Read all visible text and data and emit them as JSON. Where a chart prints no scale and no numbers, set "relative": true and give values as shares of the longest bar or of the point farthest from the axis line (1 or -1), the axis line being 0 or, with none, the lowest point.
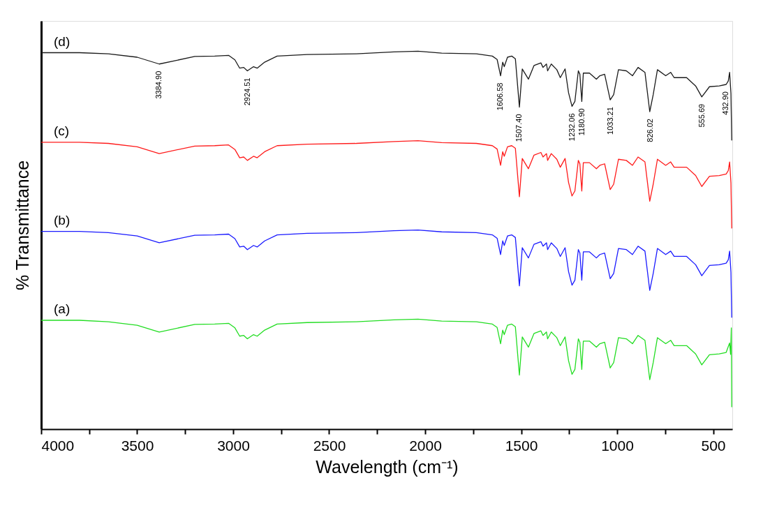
{
  "chart_data": {
    "type": "line",
    "relative": true,
    "xlabel": "Wavelength (cm⁻¹)",
    "ylabel": "% Transmittance",
    "xlim": [
      4000,
      400
    ],
    "xticks": [
      4000,
      {
        "value": 3750,
        "label": null
      },
      3500,
      {
        "value": 3250,
        "label": null
      },
      3000,
      {
        "value": 2750,
        "label": null
      },
      2500,
      {
        "value": 2250,
        "label": null
      },
      2000,
      {
        "value": 1750,
        "label": null
      },
      1500,
      {
        "value": 1250,
        "label": null
      },
      1000,
      {
        "value": 750,
        "label": null
      },
      500
    ],
    "grid": false,
    "legend": false,
    "marker": "none",
    "line_style": "solid",
    "x": [
      4000,
      3800,
      3650,
      3500,
      3385,
      3200,
      3096,
      3024,
      2991,
      2966,
      2945,
      2926,
      2894,
      2875,
      2836,
      2771,
      2615,
      2359,
      2163,
      2037,
      1914,
      1733,
      1650,
      1625,
      1607,
      1596,
      1588,
      1571,
      1549,
      1530,
      1509,
      1494,
      1462,
      1433,
      1397,
      1386,
      1368,
      1362,
      1343,
      1314,
      1296,
      1271,
      1253,
      1235,
      1220,
      1202,
      1194,
      1184,
      1176,
      1144,
      1108,
      1090,
      1065,
      1036,
      1018,
      993,
      952,
      920,
      891,
      855,
      830,
      812,
      790,
      747,
      721,
      703,
      638,
      591,
      559,
      519,
      468,
      432,
      421,
      414,
      407,
      403
    ],
    "series": [
      {
        "name": "(d)",
        "color": "#1a1a1a",
        "values": [
          0.996,
          0.996,
          0.993,
          0.984,
          0.966,
          0.986,
          0.987,
          0.989,
          0.977,
          0.955,
          0.957,
          0.948,
          0.959,
          0.955,
          0.971,
          0.987,
          0.991,
          0.993,
          0.998,
          1.0,
          0.995,
          0.993,
          0.987,
          0.978,
          0.935,
          0.971,
          0.959,
          0.984,
          0.987,
          0.98,
          0.852,
          0.953,
          0.926,
          0.962,
          0.969,
          0.957,
          0.966,
          0.948,
          0.966,
          0.951,
          0.93,
          0.953,
          0.89,
          0.854,
          0.867,
          0.948,
          0.939,
          0.867,
          0.942,
          0.942,
          0.926,
          0.935,
          0.939,
          0.871,
          0.885,
          0.951,
          0.948,
          0.935,
          0.957,
          0.944,
          0.84,
          0.885,
          0.951,
          0.935,
          0.944,
          0.93,
          0.93,
          0.908,
          0.879,
          0.906,
          0.908,
          0.912,
          0.921,
          0.944,
          0.888,
          0.764
        ]
      },
      {
        "name": "(c)",
        "color": "#ff1a1a",
        "values": [
          0.759,
          0.759,
          0.756,
          0.747,
          0.729,
          0.749,
          0.75,
          0.752,
          0.74,
          0.718,
          0.72,
          0.711,
          0.722,
          0.718,
          0.734,
          0.75,
          0.754,
          0.756,
          0.761,
          0.763,
          0.758,
          0.756,
          0.75,
          0.741,
          0.698,
          0.734,
          0.722,
          0.747,
          0.75,
          0.743,
          0.615,
          0.716,
          0.689,
          0.725,
          0.732,
          0.72,
          0.729,
          0.711,
          0.729,
          0.714,
          0.693,
          0.716,
          0.653,
          0.617,
          0.63,
          0.711,
          0.702,
          0.63,
          0.705,
          0.705,
          0.689,
          0.698,
          0.702,
          0.634,
          0.648,
          0.714,
          0.711,
          0.698,
          0.72,
          0.707,
          0.603,
          0.648,
          0.714,
          0.698,
          0.707,
          0.693,
          0.693,
          0.671,
          0.642,
          0.669,
          0.671,
          0.675,
          0.684,
          0.707,
          0.651,
          0.531
        ]
      },
      {
        "name": "(b)",
        "color": "#1a1aff",
        "values": [
          0.523,
          0.523,
          0.52,
          0.511,
          0.493,
          0.513,
          0.514,
          0.516,
          0.504,
          0.482,
          0.484,
          0.475,
          0.486,
          0.482,
          0.498,
          0.514,
          0.518,
          0.52,
          0.525,
          0.527,
          0.522,
          0.52,
          0.514,
          0.505,
          0.462,
          0.498,
          0.486,
          0.511,
          0.514,
          0.507,
          0.379,
          0.48,
          0.453,
          0.489,
          0.496,
          0.484,
          0.493,
          0.475,
          0.493,
          0.478,
          0.457,
          0.48,
          0.417,
          0.381,
          0.394,
          0.475,
          0.466,
          0.394,
          0.469,
          0.469,
          0.453,
          0.462,
          0.466,
          0.398,
          0.412,
          0.478,
          0.475,
          0.462,
          0.484,
          0.471,
          0.367,
          0.412,
          0.478,
          0.462,
          0.471,
          0.457,
          0.457,
          0.435,
          0.406,
          0.433,
          0.435,
          0.439,
          0.448,
          0.471,
          0.415,
          0.295
        ]
      },
      {
        "name": "(a)",
        "color": "#22dd22",
        "x": [
          4000,
          3800,
          3650,
          3500,
          3385,
          3200,
          3096,
          3024,
          2991,
          2966,
          2945,
          2926,
          2894,
          2875,
          2836,
          2771,
          2615,
          2359,
          2163,
          2037,
          1914,
          1733,
          1650,
          1625,
          1607,
          1596,
          1588,
          1571,
          1549,
          1530,
          1509,
          1494,
          1462,
          1433,
          1397,
          1386,
          1368,
          1362,
          1343,
          1314,
          1296,
          1271,
          1253,
          1235,
          1220,
          1202,
          1194,
          1184,
          1176,
          1144,
          1108,
          1090,
          1065,
          1036,
          1018,
          993,
          952,
          920,
          891,
          855,
          830,
          812,
          790,
          747,
          721,
          703,
          638,
          591,
          559,
          519,
          468,
          432,
          414,
          409,
          405,
          403
        ],
        "values": [
          0.288,
          0.288,
          0.284,
          0.275,
          0.257,
          0.277,
          0.278,
          0.28,
          0.268,
          0.246,
          0.248,
          0.239,
          0.25,
          0.246,
          0.262,
          0.278,
          0.282,
          0.284,
          0.289,
          0.291,
          0.286,
          0.284,
          0.278,
          0.269,
          0.226,
          0.262,
          0.25,
          0.275,
          0.278,
          0.271,
          0.143,
          0.244,
          0.217,
          0.253,
          0.26,
          0.248,
          0.257,
          0.239,
          0.257,
          0.242,
          0.221,
          0.244,
          0.181,
          0.145,
          0.158,
          0.239,
          0.23,
          0.158,
          0.233,
          0.233,
          0.217,
          0.226,
          0.23,
          0.162,
          0.176,
          0.242,
          0.239,
          0.226,
          0.248,
          0.235,
          0.131,
          0.176,
          0.242,
          0.226,
          0.235,
          0.221,
          0.221,
          0.199,
          0.17,
          0.197,
          0.199,
          0.203,
          0.228,
          0.198,
          0.268,
          0.058
        ]
      }
    ],
    "annotations": [
      {
        "text": "3384.90",
        "x": 3384.9,
        "y": 0.966
      },
      {
        "text": "2924.51",
        "x": 2924.51,
        "y": 0.948
      },
      {
        "text": "1606.58",
        "x": 1606.58,
        "y": 0.935
      },
      {
        "text": "1507.40",
        "x": 1507.4,
        "y": 0.852
      },
      {
        "text": "1232.06",
        "x": 1232.06,
        "y": 0.854
      },
      {
        "text": "1180.90",
        "x": 1180.9,
        "y": 0.867
      },
      {
        "text": "1033.21",
        "x": 1033.21,
        "y": 0.871
      },
      {
        "text": "826.02",
        "x": 826.02,
        "y": 0.84
      },
      {
        "text": "555.69",
        "x": 555.69,
        "y": 0.879
      },
      {
        "text": "432.90",
        "x": 432.9,
        "y": 0.912
      }
    ]
  }
}
